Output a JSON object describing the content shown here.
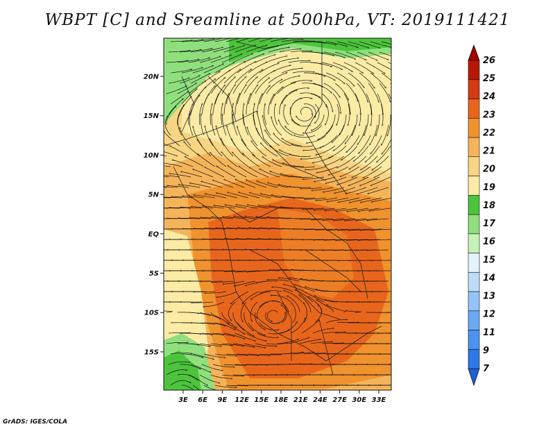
{
  "title": "WBPT [C] and Sreamline at 500hPa, VT: 2019111421",
  "footer": "GrADS: IGES/COLA",
  "lat_ticks": [
    "20N",
    "15N",
    "10N",
    "5N",
    "EQ",
    "5S",
    "10S",
    "15S"
  ],
  "lon_ticks": [
    "3E",
    "6E",
    "9E",
    "12E",
    "15E",
    "18E",
    "21E",
    "24E",
    "27E",
    "30E",
    "33E"
  ],
  "colorbar": {
    "labels": [
      "7",
      "9",
      "11",
      "12",
      "13",
      "14",
      "15",
      "16",
      "17",
      "18",
      "19",
      "20",
      "21",
      "22",
      "23",
      "24",
      "25",
      "26"
    ],
    "colors": [
      "#1f5fd6",
      "#2e78e6",
      "#4a93f0",
      "#6aaaf5",
      "#93c4f8",
      "#bcdcfa",
      "#e3f3fc",
      "#c6f2b8",
      "#8fe07d",
      "#4cc43c",
      "#fbeba4",
      "#f7d582",
      "#f5b45a",
      "#f0922e",
      "#e8661c",
      "#d53a10",
      "#b71805",
      "#a00000"
    ]
  }
}
